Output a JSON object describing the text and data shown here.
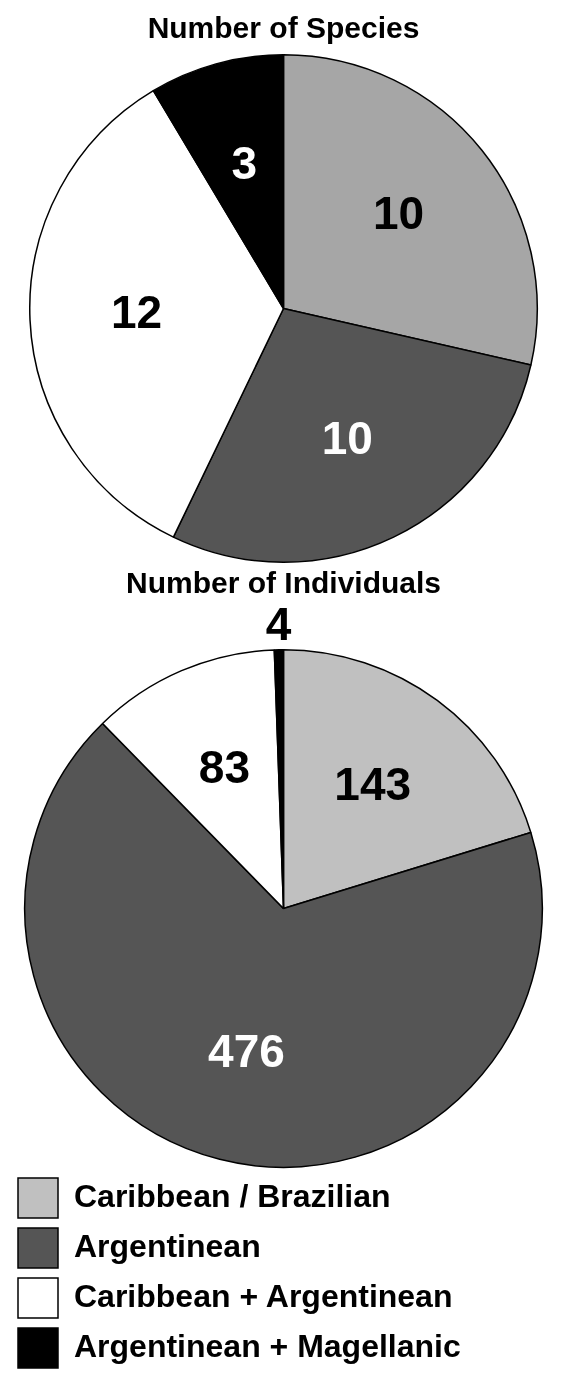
{
  "chart_data": [
    {
      "type": "pie",
      "title": "Number of Species",
      "categories": [
        null,
        null,
        null,
        null
      ],
      "values": [
        10,
        10,
        12,
        3
      ],
      "colors": [
        "#a6a6a6",
        "#555555",
        "#ffffff",
        "#000000"
      ],
      "data_labels": true,
      "legend": false
    },
    {
      "type": "pie",
      "title": "Number of Individuals",
      "categories": [
        "Caribbean / Brazilian",
        "Argentinean",
        "Caribbean + Argentinean",
        "Argentinean + Magellanic"
      ],
      "values": [
        143,
        476,
        83,
        4
      ],
      "colors": [
        "#c0c0c0",
        "#555555",
        "#ffffff",
        "#000000"
      ],
      "data_labels": true,
      "legend": "bottom"
    }
  ]
}
